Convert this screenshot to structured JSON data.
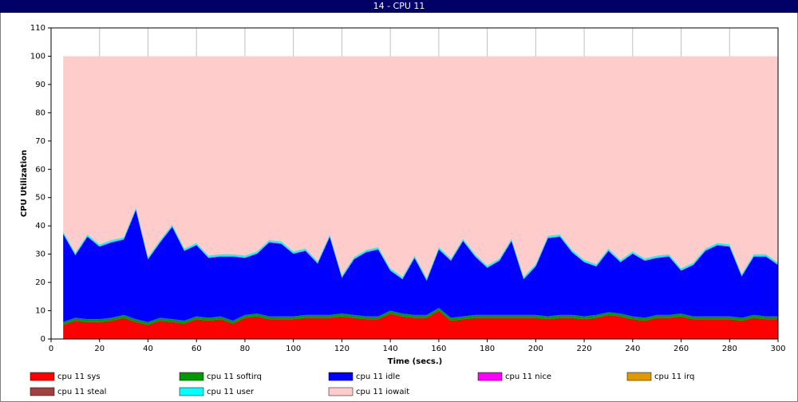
{
  "chart_data": {
    "type": "stacked-area",
    "title": "14 - CPU 11",
    "xlabel": "Time (secs.)",
    "ylabel": "CPU Utilization",
    "x": [
      5,
      10,
      15,
      20,
      25,
      30,
      35,
      40,
      45,
      50,
      55,
      60,
      65,
      70,
      75,
      80,
      85,
      90,
      95,
      100,
      105,
      110,
      115,
      120,
      125,
      130,
      135,
      140,
      145,
      150,
      155,
      160,
      165,
      170,
      175,
      180,
      185,
      190,
      195,
      200,
      205,
      210,
      215,
      220,
      225,
      230,
      235,
      240,
      245,
      250,
      255,
      260,
      265,
      270,
      275,
      280,
      285,
      290,
      295,
      300
    ],
    "xlim": [
      0,
      300
    ],
    "xticks": [
      0,
      20,
      40,
      60,
      80,
      100,
      120,
      140,
      160,
      180,
      200,
      220,
      240,
      260,
      280,
      300
    ],
    "ylim": [
      0,
      110
    ],
    "yticks": [
      0,
      10,
      20,
      30,
      40,
      50,
      60,
      70,
      80,
      90,
      100,
      110
    ],
    "grid": "x",
    "series": [
      {
        "name": "cpu 11 sys",
        "color": "#ff0000",
        "values": [
          5,
          6.5,
          6,
          6,
          6.5,
          7.5,
          6,
          5,
          6.5,
          6,
          5.5,
          7,
          6.5,
          7,
          5.5,
          7.5,
          8,
          7,
          7,
          7,
          7.5,
          7.5,
          7.5,
          8,
          7.5,
          7,
          7,
          9,
          8,
          7.5,
          7.5,
          10,
          6.5,
          7,
          7.5,
          7.5,
          7.5,
          7.5,
          7.5,
          7.5,
          7,
          7.5,
          7.5,
          7,
          7.5,
          8.5,
          8,
          7,
          6.5,
          7.5,
          7.5,
          8,
          7,
          7,
          7,
          7,
          6.5,
          7.5,
          7,
          7
        ]
      },
      {
        "name": "cpu 11 softirq",
        "color": "#009900",
        "values": [
          1,
          1,
          1,
          1,
          1,
          1,
          1,
          1,
          1,
          1,
          1,
          1,
          1,
          1,
          1,
          1,
          1,
          1,
          1,
          1,
          1,
          1,
          1,
          1,
          1,
          1,
          1,
          1,
          1,
          1,
          1,
          1,
          1,
          1,
          1,
          1,
          1,
          1,
          1,
          1,
          1,
          1,
          1,
          1,
          1,
          1,
          1,
          1,
          1,
          1,
          1,
          1,
          1,
          1,
          1,
          1,
          1,
          1,
          1,
          1
        ]
      },
      {
        "name": "cpu 11 idle",
        "color": "#0000ff",
        "values": [
          31.1,
          22.1,
          29.1,
          25.6,
          26.6,
          26.6,
          38.6,
          22.1,
          26.6,
          32.6,
          24.6,
          25.1,
          21.1,
          21.1,
          22.6,
          20.1,
          21.1,
          26.1,
          25.6,
          22.1,
          22.6,
          18.1,
          27.6,
          12.6,
          19.6,
          22.6,
          23.6,
          14.1,
          12.1,
          20.1,
          12.1,
          20.6,
          20.1,
          26.6,
          20.6,
          16.6,
          19.1,
          26.1,
          12.6,
          17.1,
          27.6,
          27.6,
          22.1,
          19.1,
          17.1,
          21.6,
          18.1,
          22.1,
          20.1,
          20.1,
          20.6,
          15.1,
          18.1,
          23.1,
          25.1,
          24.6,
          14.6,
          20.6,
          21.1,
          18.1
        ]
      },
      {
        "name": "cpu 11 nice",
        "color": "#ff00ff",
        "values": [
          0.2,
          0.2,
          0.2,
          0.2,
          0.2,
          0.2,
          0.2,
          0.2,
          0.2,
          0.2,
          0.2,
          0.2,
          0.2,
          0.2,
          0.2,
          0.2,
          0.2,
          0.2,
          0.2,
          0.2,
          0.2,
          0.2,
          0.2,
          0.2,
          0.2,
          0.2,
          0.2,
          0.2,
          0.2,
          0.2,
          0.2,
          0.2,
          0.2,
          0.2,
          0.2,
          0.2,
          0.2,
          0.2,
          0.2,
          0.2,
          0.2,
          0.2,
          0.2,
          0.2,
          0.2,
          0.2,
          0.2,
          0.2,
          0.2,
          0.2,
          0.2,
          0.2,
          0.2,
          0.2,
          0.2,
          0.2,
          0.2,
          0.2,
          0.2,
          0.2
        ]
      },
      {
        "name": "cpu 11 irq",
        "color": "#e09900",
        "values": [
          0,
          0,
          0,
          0,
          0,
          0,
          0,
          0,
          0,
          0,
          0,
          0,
          0,
          0,
          0,
          0,
          0,
          0,
          0,
          0,
          0,
          0,
          0,
          0,
          0,
          0,
          0,
          0,
          0,
          0,
          0,
          0,
          0,
          0,
          0,
          0,
          0,
          0,
          0,
          0,
          0,
          0,
          0,
          0,
          0,
          0,
          0,
          0,
          0,
          0,
          0,
          0,
          0,
          0,
          0,
          0,
          0,
          0,
          0,
          0
        ]
      },
      {
        "name": "cpu 11 steal",
        "color": "#a04040",
        "values": [
          0,
          0,
          0,
          0,
          0,
          0,
          0,
          0,
          0,
          0,
          0,
          0,
          0,
          0,
          0,
          0,
          0,
          0,
          0,
          0,
          0,
          0,
          0,
          0,
          0,
          0,
          0,
          0,
          0,
          0,
          0,
          0,
          0,
          0,
          0,
          0,
          0,
          0,
          0,
          0,
          0,
          0,
          0,
          0,
          0,
          0,
          0,
          0,
          0,
          0,
          0,
          0,
          0,
          0,
          0,
          0,
          0,
          0,
          0,
          0
        ]
      },
      {
        "name": "cpu 11 user",
        "color": "#00ffff",
        "values": [
          0.7,
          0.7,
          0.7,
          0.7,
          0.7,
          0.7,
          0.7,
          0.7,
          0.7,
          0.7,
          0.7,
          0.7,
          0.7,
          0.7,
          0.7,
          0.7,
          0.7,
          0.7,
          0.7,
          0.7,
          0.7,
          0.7,
          0.7,
          0.7,
          0.7,
          0.7,
          0.7,
          0.7,
          0.7,
          0.7,
          0.7,
          0.7,
          0.7,
          0.7,
          0.7,
          0.7,
          0.7,
          0.7,
          0.7,
          0.7,
          0.7,
          0.7,
          0.7,
          0.7,
          0.7,
          0.7,
          0.7,
          0.7,
          0.7,
          0.7,
          0.7,
          0.7,
          0.7,
          0.7,
          0.7,
          0.7,
          0.7,
          0.7,
          0.7,
          0.7
        ]
      },
      {
        "name": "cpu 11 iowait",
        "color": "#ffcccc",
        "values": [
          62,
          69.5,
          63,
          66.5,
          65,
          64,
          53.5,
          71,
          65,
          59.5,
          68,
          66,
          70.5,
          70,
          70,
          70.5,
          69,
          65,
          65.5,
          69,
          68,
          72.5,
          63,
          77.5,
          71,
          68.5,
          67.5,
          75,
          78,
          70.5,
          78.5,
          67.5,
          71.5,
          64.5,
          70,
          74,
          71.5,
          64.5,
          78,
          73.5,
          63.5,
          63,
          68.5,
          72,
          73.5,
          68,
          72,
          69,
          71.5,
          70.5,
          70,
          75,
          73,
          68,
          66,
          66.5,
          77,
          70,
          70,
          73
        ]
      }
    ]
  }
}
